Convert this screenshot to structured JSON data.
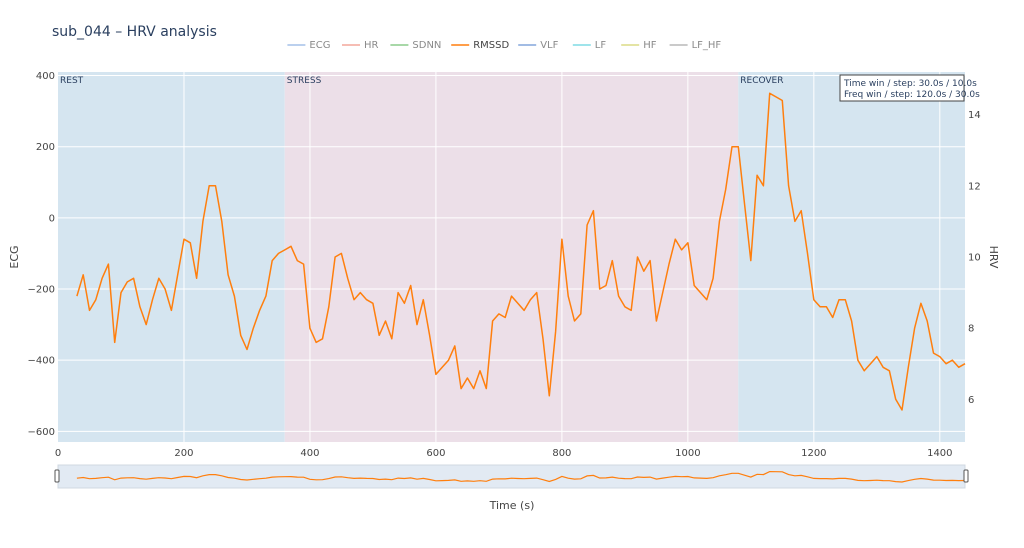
{
  "chart_data": {
    "type": "line",
    "title": "sub_044 – HRV analysis",
    "xlabel": "Time (s)",
    "ylabel_left": "ECG",
    "ylabel_right": "HRV",
    "xlim": [
      0,
      1440
    ],
    "ylim_left": [
      -630,
      410
    ],
    "ylim_right": [
      4.8,
      15.2
    ],
    "x_ticks": [
      0,
      200,
      400,
      600,
      800,
      1000,
      1200,
      1400
    ],
    "y_left_ticks": [
      400,
      200,
      0,
      -200,
      -400,
      -600
    ],
    "y_right_ticks": [
      14,
      12,
      10,
      8,
      6
    ],
    "grid": true,
    "legend_placement": "top-center",
    "legend": [
      {
        "name": "ECG",
        "color": "#5b8fd6"
      },
      {
        "name": "HR",
        "color": "#e8604a"
      },
      {
        "name": "SDNN",
        "color": "#2ca02c"
      },
      {
        "name": "RMSSD",
        "color": "#ff7f0e",
        "active": true
      },
      {
        "name": "VLF",
        "color": "#1f5fbf"
      },
      {
        "name": "LF",
        "color": "#17becf"
      },
      {
        "name": "HF",
        "color": "#bcbd22"
      },
      {
        "name": "LF_HF",
        "color": "#7f7f7f"
      }
    ],
    "regions": [
      {
        "label": "REST",
        "start": 0,
        "end": 360,
        "color": "#d5e5f0"
      },
      {
        "label": "STRESS",
        "start": 360,
        "end": 1080,
        "color": "#ecdfe8"
      },
      {
        "label": "RECOVER",
        "start": 1080,
        "end": 1440,
        "color": "#d5e5f0"
      }
    ],
    "annotation": [
      "Time win / step: 30.0s / 10.0s",
      "Freq win / step: 120.0s / 30.0s"
    ],
    "series": [
      {
        "name": "RMSSD",
        "axis": "right",
        "color": "#ff7f0e",
        "x": [
          30,
          40,
          50,
          60,
          70,
          80,
          90,
          100,
          110,
          120,
          130,
          140,
          150,
          160,
          170,
          180,
          190,
          200,
          210,
          220,
          230,
          240,
          250,
          260,
          270,
          280,
          290,
          300,
          310,
          320,
          330,
          340,
          350,
          360,
          370,
          380,
          390,
          400,
          410,
          420,
          430,
          440,
          450,
          460,
          470,
          480,
          490,
          500,
          510,
          520,
          530,
          540,
          550,
          560,
          570,
          580,
          590,
          600,
          610,
          620,
          630,
          640,
          650,
          660,
          670,
          680,
          690,
          700,
          710,
          720,
          730,
          740,
          750,
          760,
          770,
          780,
          790,
          800,
          810,
          820,
          830,
          840,
          850,
          860,
          870,
          880,
          890,
          900,
          910,
          920,
          930,
          940,
          950,
          960,
          970,
          980,
          990,
          1000,
          1010,
          1020,
          1030,
          1040,
          1050,
          1060,
          1070,
          1080,
          1090,
          1100,
          1110,
          1120,
          1130,
          1140,
          1150,
          1160,
          1170,
          1180,
          1190,
          1200,
          1210,
          1220,
          1230,
          1240,
          1250,
          1260,
          1270,
          1280,
          1290,
          1300,
          1310,
          1320,
          1330,
          1340,
          1350,
          1360,
          1370,
          1380,
          1390,
          1400,
          1410,
          1420,
          1430,
          1440
        ],
        "y": [
          8.9,
          9.5,
          8.5,
          8.8,
          9.4,
          9.8,
          7.6,
          9.0,
          9.3,
          9.4,
          8.6,
          8.1,
          8.8,
          9.4,
          9.1,
          8.5,
          9.5,
          10.5,
          10.4,
          9.4,
          11.0,
          12.0,
          12.0,
          11.0,
          9.5,
          8.9,
          7.8,
          7.4,
          8.0,
          8.5,
          8.9,
          9.9,
          10.1,
          10.2,
          10.3,
          9.9,
          9.8,
          8.0,
          7.6,
          7.7,
          8.6,
          10.0,
          10.1,
          9.4,
          8.8,
          9.0,
          8.8,
          8.7,
          7.8,
          8.2,
          7.7,
          9.0,
          8.7,
          9.2,
          8.1,
          8.8,
          7.8,
          6.7,
          6.9,
          7.1,
          7.5,
          6.3,
          6.6,
          6.3,
          6.8,
          6.3,
          8.2,
          8.4,
          8.3,
          8.9,
          8.7,
          8.5,
          8.8,
          9.0,
          7.7,
          6.1,
          7.9,
          10.5,
          8.9,
          8.2,
          8.4,
          10.9,
          11.3,
          9.1,
          9.2,
          9.9,
          8.9,
          8.6,
          8.5,
          10.0,
          9.6,
          9.9,
          8.2,
          9.0,
          9.8,
          10.5,
          10.2,
          10.4,
          9.2,
          9.0,
          8.8,
          9.4,
          11.0,
          11.9,
          13.1,
          13.1,
          11.5,
          9.9,
          12.3,
          12.0,
          14.6,
          14.5,
          14.4,
          12.0,
          11.0,
          11.3,
          10.1,
          8.8,
          8.6,
          8.6,
          8.3,
          8.8,
          8.8,
          8.2,
          7.1,
          6.8,
          7.0,
          7.2,
          6.9,
          6.8,
          6.0,
          5.7,
          6.9,
          8.0,
          8.7,
          8.2,
          7.3,
          7.2,
          7.0,
          7.1,
          6.9,
          7.0
        ]
      }
    ]
  }
}
